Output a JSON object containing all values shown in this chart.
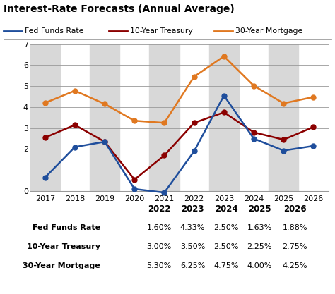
{
  "title": "Interest-Rate Forecasts (Annual Average)",
  "years": [
    2017,
    2018,
    2019,
    2020,
    2021,
    2022,
    2023,
    2024,
    2025,
    2026
  ],
  "fed_funds": [
    0.65,
    2.1,
    2.35,
    0.1,
    -0.07,
    1.9,
    4.55,
    2.5,
    1.93,
    2.15
  ],
  "treasury_10y": [
    2.55,
    3.15,
    2.35,
    0.55,
    1.7,
    3.25,
    3.75,
    2.8,
    2.45,
    3.05
  ],
  "mortgage_30y": [
    4.2,
    4.78,
    4.15,
    3.35,
    3.25,
    5.45,
    6.42,
    5.02,
    4.18,
    4.48
  ],
  "fed_color": "#1f4e9c",
  "treasury_color": "#8b0000",
  "mortgage_color": "#e07820",
  "bg_color": "#ffffff",
  "stripe_color": "#d8d8d8",
  "ylim": [
    0,
    7
  ],
  "yticks": [
    0,
    2,
    3,
    4,
    5,
    6,
    7
  ],
  "legend_labels": [
    "Fed Funds Rate",
    "10-Year Treasury",
    "30-Year Mortgage"
  ],
  "table_years": [
    "2022",
    "2023",
    "2024",
    "2025",
    "2026"
  ],
  "table_rows": [
    {
      "label": "Fed Funds Rate",
      "values": [
        "1.60%",
        "4.33%",
        "2.50%",
        "1.63%",
        "1.88%"
      ]
    },
    {
      "label": "10-Year Treasury",
      "values": [
        "3.00%",
        "3.50%",
        "2.50%",
        "2.25%",
        "2.75%"
      ]
    },
    {
      "label": "30-Year Mortgage",
      "values": [
        "5.30%",
        "6.25%",
        "4.75%",
        "4.00%",
        "4.25%"
      ]
    }
  ],
  "stripe_years": [
    2017,
    2019,
    2021,
    2023,
    2025
  ]
}
